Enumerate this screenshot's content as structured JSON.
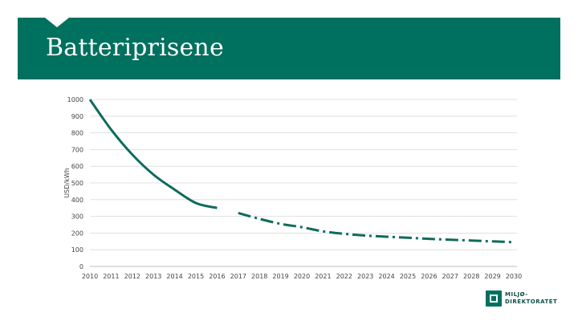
{
  "slide": {
    "title": "Batteriprisene",
    "logo_line1": "MILJØ-",
    "logo_line2": "DIREKTORATET"
  },
  "colors": {
    "band": "#00705f",
    "series": "#0e6b5c",
    "grid": "#d9d9d9"
  },
  "chart_data": {
    "type": "line",
    "title": "",
    "xlabel": "",
    "ylabel": "USD/kWh",
    "ylim": [
      0,
      1000
    ],
    "yticks": [
      0,
      100,
      200,
      300,
      400,
      500,
      600,
      700,
      800,
      900,
      1000
    ],
    "categories": [
      "2010",
      "2011",
      "2012",
      "2013",
      "2014",
      "2015",
      "2016",
      "2017",
      "2018",
      "2019",
      "2020",
      "2021",
      "2022",
      "2023",
      "2024",
      "2025",
      "2026",
      "2027",
      "2028",
      "2029",
      "2030"
    ],
    "grid": true,
    "legend": "none",
    "series": [
      {
        "line_style": "solid",
        "x": [
          "2010",
          "2011",
          "2012",
          "2013",
          "2014",
          "2015",
          "2016"
        ],
        "values": [
          1000,
          820,
          670,
          550,
          460,
          380,
          350
        ]
      },
      {
        "line_style": "dash-dot",
        "x": [
          "2017",
          "2018",
          "2019",
          "2020",
          "2021",
          "2022",
          "2023",
          "2024",
          "2025",
          "2026",
          "2027",
          "2028",
          "2029",
          "2030"
        ],
        "values": [
          320,
          285,
          255,
          235,
          210,
          195,
          185,
          178,
          172,
          165,
          160,
          155,
          150,
          145
        ]
      }
    ]
  }
}
